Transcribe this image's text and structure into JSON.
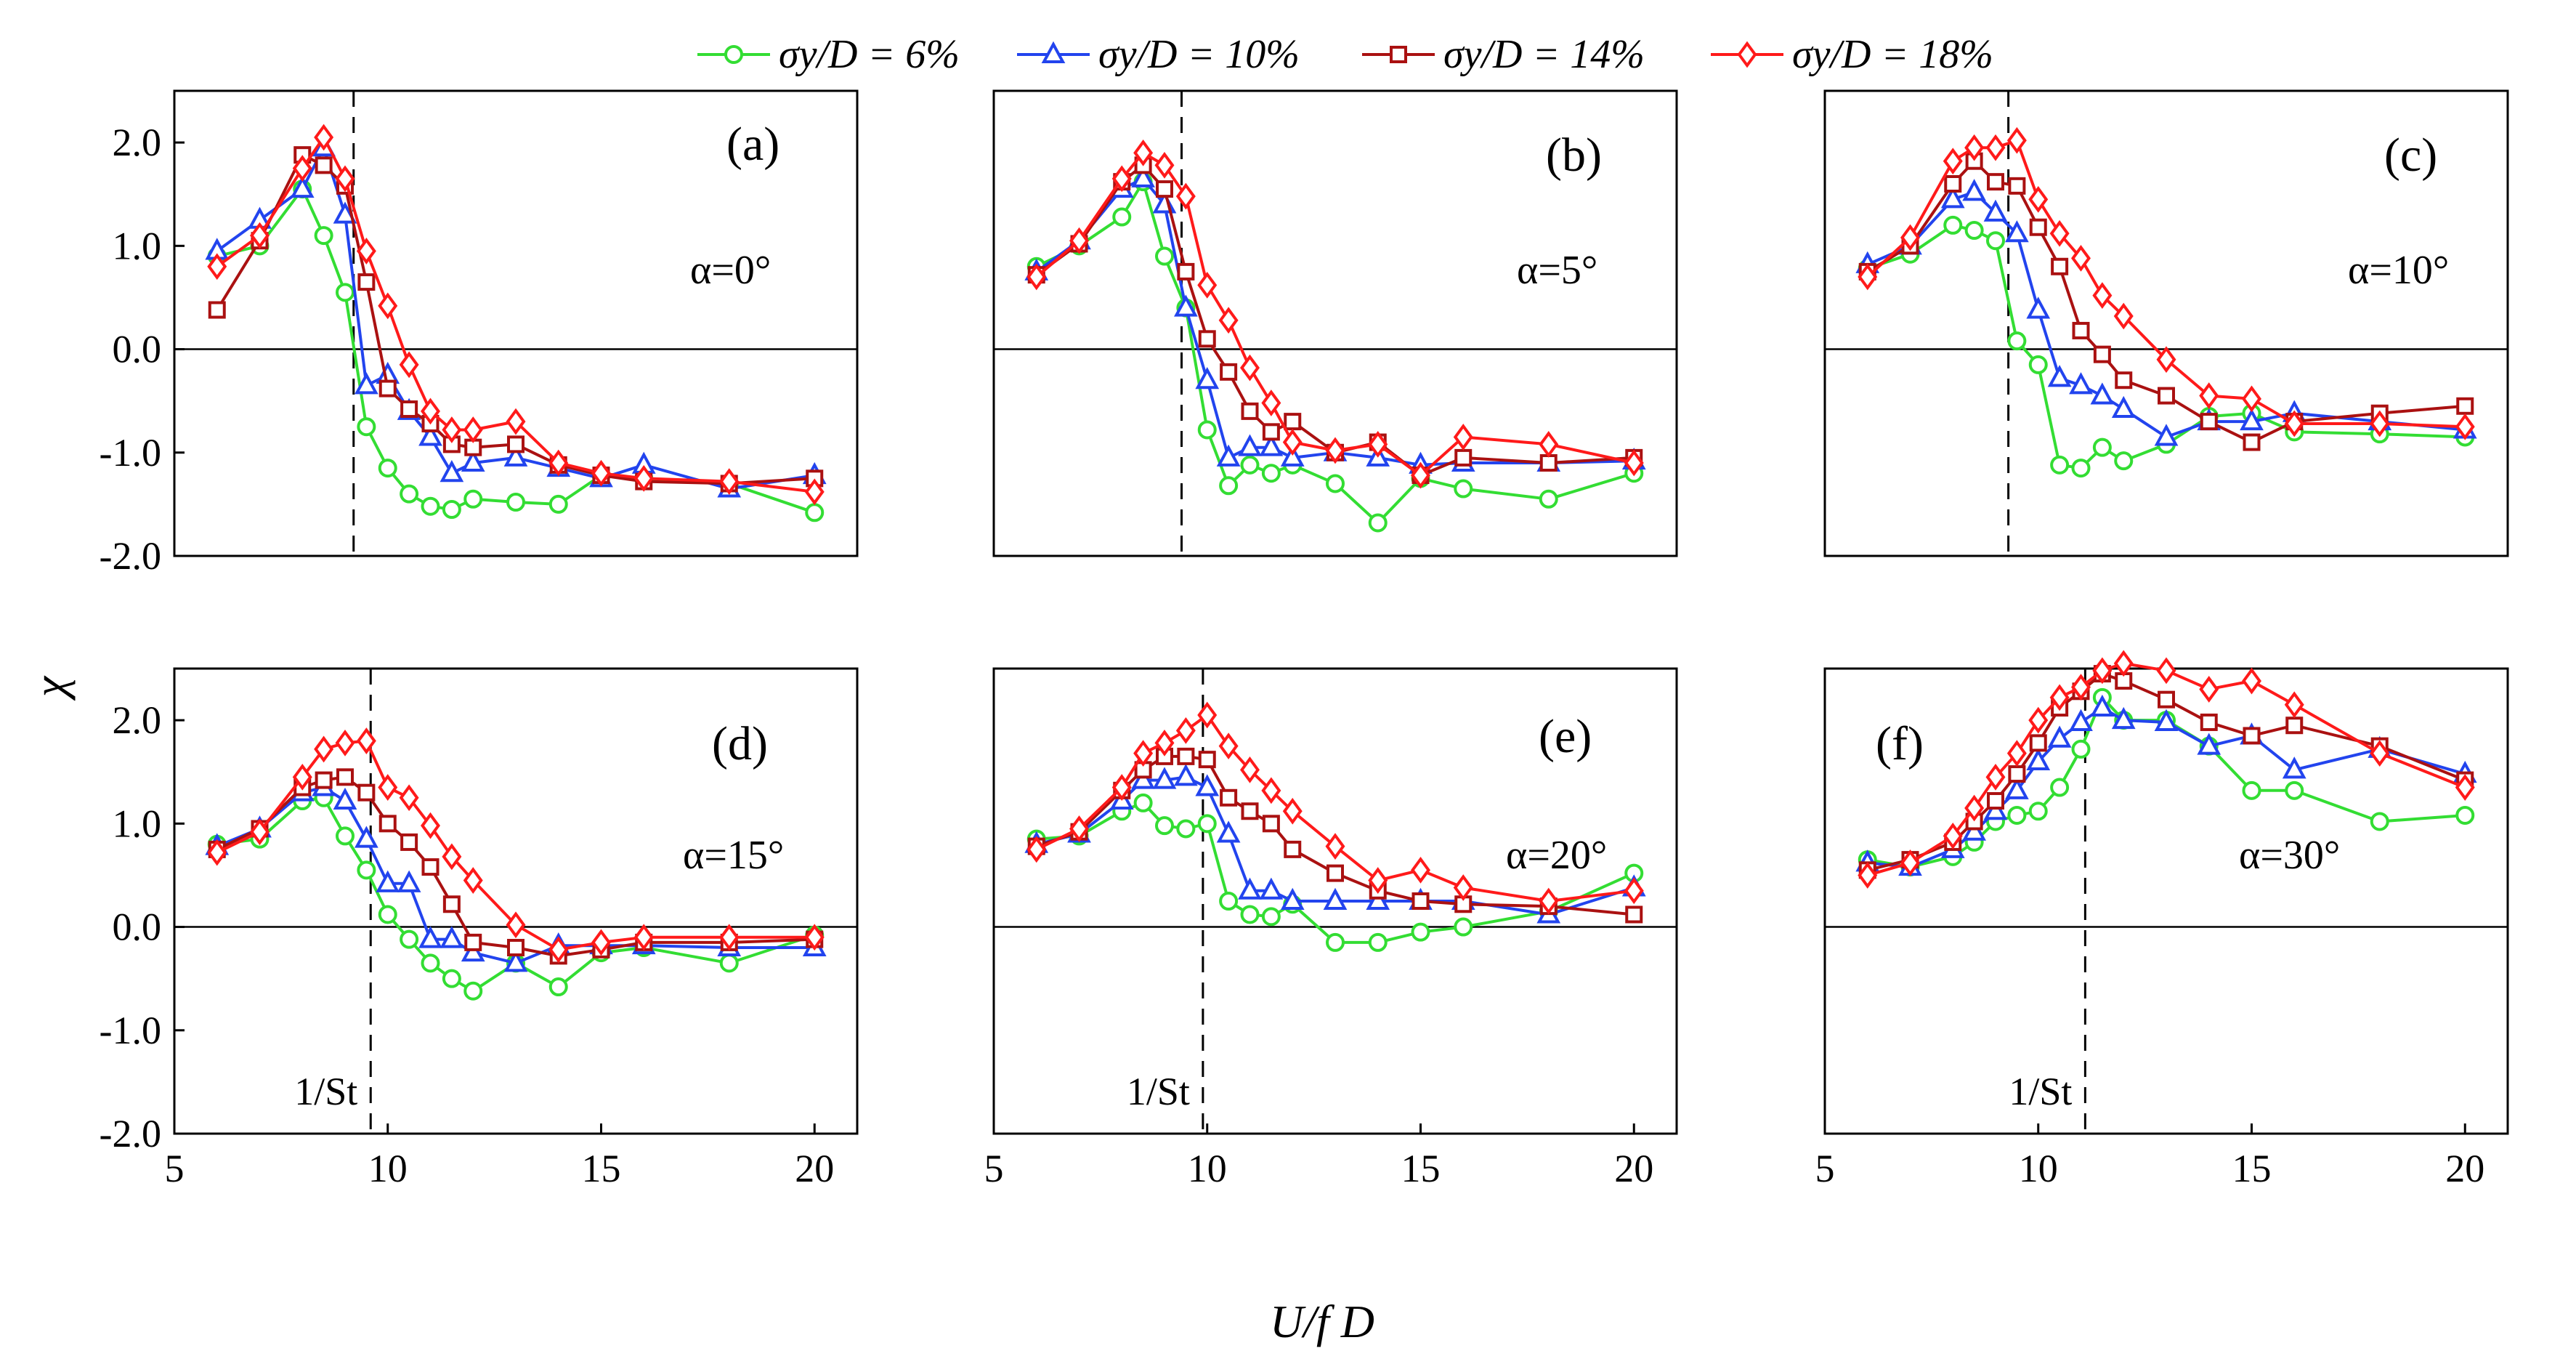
{
  "colors": {
    "s6": "#33dd33",
    "s10": "#2244ee",
    "s14": "#aa1111",
    "s18": "#ff1a1a",
    "axis": "#000000"
  },
  "legend": [
    {
      "key": "s6",
      "label": "σy/D = 6%",
      "marker": "circle"
    },
    {
      "key": "s10",
      "label": "σy/D = 10%",
      "marker": "triangle"
    },
    {
      "key": "s14",
      "label": "σy/D = 14%",
      "marker": "square"
    },
    {
      "key": "s18",
      "label": "σy/D = 18%",
      "marker": "diamond"
    }
  ],
  "axes": {
    "xlabel": "U/f D",
    "ylabel": "χ",
    "xticks": [
      "5",
      "10",
      "15",
      "20"
    ],
    "yticks": [
      "2.0",
      "1.0",
      "0.0",
      "-1.0",
      "-2.0"
    ]
  },
  "chart_data": [
    {
      "type": "line",
      "panel": "(a)",
      "alpha": "α=0°",
      "xlim": [
        5,
        21
      ],
      "ylim": [
        -2,
        2.5
      ],
      "vline": 9.2,
      "st_label": "",
      "series": [
        {
          "name": "σy/D = 6%",
          "x": [
            6,
            7,
            8,
            8.5,
            9,
            9.5,
            10,
            10.5,
            11,
            11.5,
            12,
            13,
            14,
            15,
            16,
            18,
            20
          ],
          "y": [
            0.9,
            1.0,
            1.55,
            1.1,
            0.55,
            -0.75,
            -1.15,
            -1.4,
            -1.52,
            -1.55,
            -1.45,
            -1.48,
            -1.5,
            -1.22,
            -1.25,
            -1.3,
            -1.58
          ]
        },
        {
          "name": "σy/D = 10%",
          "x": [
            6,
            7,
            8,
            8.5,
            9,
            9.5,
            10,
            10.5,
            11,
            11.5,
            12,
            13,
            14,
            15,
            16,
            18,
            20
          ],
          "y": [
            0.95,
            1.25,
            1.55,
            1.95,
            1.3,
            -0.35,
            -0.25,
            -0.6,
            -0.85,
            -1.2,
            -1.1,
            -1.05,
            -1.15,
            -1.25,
            -1.12,
            -1.35,
            -1.22
          ]
        },
        {
          "name": "σy/D = 14%",
          "x": [
            6,
            7,
            8,
            8.5,
            9,
            9.5,
            10,
            10.5,
            11,
            11.5,
            12,
            13,
            14,
            15,
            16,
            18,
            20
          ],
          "y": [
            0.38,
            1.05,
            1.88,
            1.78,
            1.58,
            0.65,
            -0.38,
            -0.58,
            -0.72,
            -0.92,
            -0.95,
            -0.92,
            -1.12,
            -1.22,
            -1.28,
            -1.3,
            -1.25
          ]
        },
        {
          "name": "σy/D = 18%",
          "x": [
            6,
            7,
            8,
            8.5,
            9,
            9.5,
            10,
            10.5,
            11,
            11.5,
            12,
            13,
            14,
            15,
            16,
            18,
            20
          ],
          "y": [
            0.8,
            1.1,
            1.75,
            2.05,
            1.65,
            0.95,
            0.42,
            -0.15,
            -0.6,
            -0.78,
            -0.78,
            -0.7,
            -1.1,
            -1.2,
            -1.25,
            -1.28,
            -1.38
          ]
        }
      ]
    },
    {
      "type": "line",
      "panel": "(b)",
      "alpha": "α=5°",
      "xlim": [
        5,
        21
      ],
      "ylim": [
        -2,
        2.5
      ],
      "vline": 9.4,
      "st_label": "",
      "series": [
        {
          "name": "σy/D = 6%",
          "x": [
            6,
            7,
            8,
            8.5,
            9,
            9.5,
            10,
            10.5,
            11,
            11.5,
            12,
            13,
            14,
            15,
            16,
            18,
            20
          ],
          "y": [
            0.8,
            1.0,
            1.28,
            1.62,
            0.9,
            0.4,
            -0.78,
            -1.32,
            -1.12,
            -1.2,
            -1.12,
            -1.3,
            -1.68,
            -1.25,
            -1.35,
            -1.45,
            -1.2
          ]
        },
        {
          "name": "σy/D = 10%",
          "x": [
            6,
            7,
            8,
            8.5,
            9,
            9.5,
            10,
            10.5,
            11,
            11.5,
            12,
            13,
            14,
            15,
            16,
            18,
            20
          ],
          "y": [
            0.75,
            1.05,
            1.55,
            1.65,
            1.4,
            0.4,
            -0.3,
            -1.05,
            -0.95,
            -0.95,
            -1.05,
            -1.0,
            -1.05,
            -1.12,
            -1.1,
            -1.1,
            -1.08
          ]
        },
        {
          "name": "σy/D = 14%",
          "x": [
            6,
            7,
            8,
            8.5,
            9,
            9.5,
            10,
            10.5,
            11,
            11.5,
            12,
            13,
            14,
            15,
            16,
            18,
            20
          ],
          "y": [
            0.72,
            1.02,
            1.62,
            1.78,
            1.55,
            0.75,
            0.1,
            -0.22,
            -0.6,
            -0.8,
            -0.7,
            -1.0,
            -0.9,
            -1.22,
            -1.05,
            -1.1,
            -1.05
          ]
        },
        {
          "name": "σy/D = 18%",
          "x": [
            6,
            7,
            8,
            8.5,
            9,
            9.5,
            10,
            10.5,
            11,
            11.5,
            12,
            13,
            14,
            15,
            16,
            18,
            20
          ],
          "y": [
            0.7,
            1.05,
            1.65,
            1.9,
            1.78,
            1.48,
            0.62,
            0.28,
            -0.18,
            -0.52,
            -0.9,
            -0.98,
            -0.92,
            -1.22,
            -0.85,
            -0.92,
            -1.1
          ]
        }
      ]
    },
    {
      "type": "line",
      "panel": "(c)",
      "alpha": "α=10°",
      "xlim": [
        5,
        21
      ],
      "ylim": [
        -2,
        2.5
      ],
      "vline": 9.3,
      "st_label": "",
      "series": [
        {
          "name": "σy/D = 6%",
          "x": [
            6,
            7,
            8,
            8.5,
            9,
            9.5,
            10,
            10.5,
            11,
            11.5,
            12,
            13,
            14,
            15,
            16,
            18,
            20
          ],
          "y": [
            0.78,
            0.92,
            1.2,
            1.15,
            1.05,
            0.08,
            -0.15,
            -1.12,
            -1.15,
            -0.95,
            -1.08,
            -0.92,
            -0.65,
            -0.62,
            -0.8,
            -0.82,
            -0.85
          ]
        },
        {
          "name": "σy/D = 10%",
          "x": [
            6,
            7,
            8,
            8.5,
            9,
            9.5,
            10,
            10.5,
            11,
            11.5,
            12,
            13,
            14,
            15,
            16,
            18,
            20
          ],
          "y": [
            0.82,
            1.0,
            1.45,
            1.52,
            1.32,
            1.12,
            0.38,
            -0.28,
            -0.35,
            -0.45,
            -0.58,
            -0.85,
            -0.7,
            -0.7,
            -0.62,
            -0.7,
            -0.78
          ]
        },
        {
          "name": "σy/D = 14%",
          "x": [
            6,
            7,
            8,
            8.5,
            9,
            9.5,
            10,
            10.5,
            11,
            11.5,
            12,
            13,
            14,
            15,
            16,
            18,
            20
          ],
          "y": [
            0.75,
            1.0,
            1.6,
            1.82,
            1.62,
            1.58,
            1.18,
            0.8,
            0.18,
            -0.05,
            -0.3,
            -0.45,
            -0.7,
            -0.9,
            -0.7,
            -0.62,
            -0.55
          ]
        },
        {
          "name": "σy/D = 18%",
          "x": [
            6,
            7,
            8,
            8.5,
            9,
            9.5,
            10,
            10.5,
            11,
            11.5,
            12,
            13,
            14,
            15,
            16,
            18,
            20
          ],
          "y": [
            0.7,
            1.08,
            1.82,
            1.95,
            1.95,
            2.02,
            1.45,
            1.12,
            0.88,
            0.52,
            0.32,
            -0.1,
            -0.45,
            -0.48,
            -0.72,
            -0.72,
            -0.75
          ]
        }
      ]
    },
    {
      "type": "line",
      "panel": "(d)",
      "alpha": "α=15°",
      "xlim": [
        5,
        21
      ],
      "ylim": [
        -2,
        2.5
      ],
      "vline": 9.6,
      "st_label": "1/St",
      "series": [
        {
          "name": "σy/D = 6%",
          "x": [
            6,
            7,
            8,
            8.5,
            9,
            9.5,
            10,
            10.5,
            11,
            11.5,
            12,
            13,
            14,
            15,
            16,
            18,
            20
          ],
          "y": [
            0.8,
            0.85,
            1.22,
            1.25,
            0.88,
            0.55,
            0.12,
            -0.12,
            -0.35,
            -0.5,
            -0.62,
            -0.35,
            -0.58,
            -0.25,
            -0.2,
            -0.35,
            -0.08
          ]
        },
        {
          "name": "σy/D = 10%",
          "x": [
            6,
            7,
            8,
            8.5,
            9,
            9.5,
            10,
            10.5,
            11,
            11.5,
            12,
            13,
            14,
            15,
            16,
            18,
            20
          ],
          "y": [
            0.78,
            0.95,
            1.3,
            1.35,
            1.22,
            0.85,
            0.42,
            0.42,
            -0.12,
            -0.12,
            -0.25,
            -0.35,
            -0.18,
            -0.18,
            -0.18,
            -0.2,
            -0.2
          ]
        },
        {
          "name": "σy/D = 14%",
          "x": [
            6,
            7,
            8,
            8.5,
            9,
            9.5,
            10,
            10.5,
            11,
            11.5,
            12,
            13,
            14,
            15,
            16,
            18,
            20
          ],
          "y": [
            0.75,
            0.95,
            1.35,
            1.42,
            1.45,
            1.3,
            1.0,
            0.82,
            0.58,
            0.22,
            -0.15,
            -0.2,
            -0.28,
            -0.22,
            -0.15,
            -0.15,
            -0.12
          ]
        },
        {
          "name": "σy/D = 18%",
          "x": [
            6,
            7,
            8,
            8.5,
            9,
            9.5,
            10,
            10.5,
            11,
            11.5,
            12,
            13,
            14,
            15,
            16,
            18,
            20
          ],
          "y": [
            0.72,
            0.92,
            1.45,
            1.72,
            1.78,
            1.8,
            1.35,
            1.25,
            0.98,
            0.68,
            0.45,
            0.02,
            -0.22,
            -0.15,
            -0.1,
            -0.1,
            -0.1
          ]
        }
      ]
    },
    {
      "type": "line",
      "panel": "(e)",
      "alpha": "α=20°",
      "xlim": [
        5,
        21
      ],
      "ylim": [
        -2,
        2.5
      ],
      "vline": 9.9,
      "st_label": "1/St",
      "series": [
        {
          "name": "σy/D = 6%",
          "x": [
            6,
            7,
            8,
            8.5,
            9,
            9.5,
            10,
            10.5,
            11,
            11.5,
            12,
            13,
            14,
            15,
            16,
            18,
            20
          ],
          "y": [
            0.85,
            0.88,
            1.12,
            1.2,
            0.98,
            0.95,
            1.0,
            0.25,
            0.12,
            0.1,
            0.22,
            -0.15,
            -0.15,
            -0.05,
            0.0,
            0.15,
            0.52
          ]
        },
        {
          "name": "σy/D = 10%",
          "x": [
            6,
            7,
            8,
            8.5,
            9,
            9.5,
            10,
            10.5,
            11,
            11.5,
            12,
            13,
            14,
            15,
            16,
            18,
            20
          ],
          "y": [
            0.8,
            0.9,
            1.22,
            1.42,
            1.42,
            1.45,
            1.35,
            0.9,
            0.35,
            0.35,
            0.25,
            0.25,
            0.25,
            0.25,
            0.25,
            0.12,
            0.38
          ]
        },
        {
          "name": "σy/D = 14%",
          "x": [
            6,
            7,
            8,
            8.5,
            9,
            9.5,
            10,
            10.5,
            11,
            11.5,
            12,
            13,
            14,
            15,
            16,
            18,
            20
          ],
          "y": [
            0.78,
            0.92,
            1.32,
            1.52,
            1.65,
            1.65,
            1.62,
            1.25,
            1.12,
            1.0,
            0.75,
            0.52,
            0.35,
            0.25,
            0.22,
            0.2,
            0.12
          ]
        },
        {
          "name": "σy/D = 18%",
          "x": [
            6,
            7,
            8,
            8.5,
            9,
            9.5,
            10,
            10.5,
            11,
            11.5,
            12,
            13,
            14,
            15,
            16,
            18,
            20
          ],
          "y": [
            0.75,
            0.95,
            1.35,
            1.68,
            1.78,
            1.9,
            2.05,
            1.75,
            1.52,
            1.32,
            1.12,
            0.78,
            0.45,
            0.55,
            0.38,
            0.25,
            0.35
          ]
        }
      ]
    },
    {
      "type": "line",
      "panel": "(f)",
      "alpha": "α=30°",
      "xlim": [
        5,
        21
      ],
      "ylim": [
        -2,
        2.5
      ],
      "vline": 11.1,
      "st_label": "1/St",
      "series": [
        {
          "name": "σy/D = 6%",
          "x": [
            6,
            7,
            8,
            8.5,
            9,
            9.5,
            10,
            10.5,
            11,
            11.5,
            12,
            13,
            14,
            15,
            16,
            18,
            20
          ],
          "y": [
            0.65,
            0.58,
            0.68,
            0.82,
            1.02,
            1.08,
            1.12,
            1.35,
            1.72,
            2.22,
            2.0,
            2.0,
            1.75,
            1.32,
            1.32,
            1.02,
            1.08
          ]
        },
        {
          "name": "σy/D = 10%",
          "x": [
            6,
            7,
            8,
            8.5,
            9,
            9.5,
            10,
            10.5,
            11,
            11.5,
            12,
            13,
            14,
            15,
            16,
            18,
            20
          ],
          "y": [
            0.62,
            0.58,
            0.75,
            0.92,
            1.12,
            1.32,
            1.6,
            1.82,
            1.98,
            2.12,
            2.0,
            1.98,
            1.75,
            1.85,
            1.52,
            1.72,
            1.48
          ]
        },
        {
          "name": "σy/D = 14%",
          "x": [
            6,
            7,
            8,
            8.5,
            9,
            9.5,
            10,
            10.5,
            11,
            11.5,
            12,
            13,
            14,
            15,
            16,
            18,
            20
          ],
          "y": [
            0.55,
            0.65,
            0.82,
            1.02,
            1.22,
            1.48,
            1.78,
            2.12,
            2.28,
            2.45,
            2.38,
            2.2,
            1.98,
            1.85,
            1.95,
            1.75,
            1.42
          ]
        },
        {
          "name": "σy/D = 18%",
          "x": [
            6,
            7,
            8,
            8.5,
            9,
            9.5,
            10,
            10.5,
            11,
            11.5,
            12,
            13,
            14,
            15,
            16,
            18,
            20
          ],
          "y": [
            0.5,
            0.62,
            0.88,
            1.15,
            1.45,
            1.68,
            2.0,
            2.22,
            2.32,
            2.48,
            2.55,
            2.48,
            2.3,
            2.38,
            2.15,
            1.68,
            1.35
          ]
        }
      ]
    }
  ]
}
